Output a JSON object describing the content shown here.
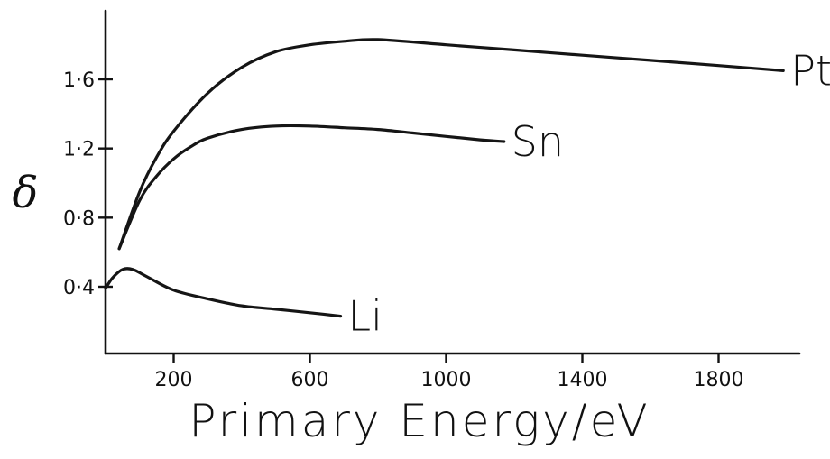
{
  "chart_data": {
    "type": "line",
    "title": "",
    "xlabel": "Primary Energy/eV",
    "ylabel": "δ",
    "xlim": [
      0,
      2050
    ],
    "ylim": [
      0.1,
      2.0
    ],
    "x_ticks": [
      200,
      600,
      1000,
      1400,
      1800
    ],
    "x_tick_labels": [
      "200",
      "600",
      "1000",
      "1400",
      "1800"
    ],
    "y_ticks": [
      0.4,
      0.8,
      1.2,
      1.6
    ],
    "y_tick_labels": [
      "0·4",
      "0·8",
      "1·2",
      "1·6"
    ],
    "grid": false,
    "legend": "none (series labelled at line ends)",
    "series": [
      {
        "name": "Pt",
        "x": [
          40,
          100,
          150,
          200,
          300,
          400,
          500,
          600,
          700,
          800,
          1000,
          1200,
          1400,
          1600,
          1800,
          1990
        ],
        "y": [
          0.62,
          0.95,
          1.15,
          1.3,
          1.52,
          1.67,
          1.76,
          1.8,
          1.82,
          1.83,
          1.8,
          1.77,
          1.74,
          1.71,
          1.68,
          1.65
        ]
      },
      {
        "name": "Sn",
        "x": [
          40,
          100,
          150,
          200,
          250,
          300,
          400,
          500,
          600,
          700,
          800,
          900,
          1000,
          1100,
          1170
        ],
        "y": [
          0.62,
          0.9,
          1.04,
          1.14,
          1.21,
          1.26,
          1.31,
          1.33,
          1.33,
          1.32,
          1.31,
          1.29,
          1.27,
          1.25,
          1.24
        ]
      },
      {
        "name": "Li",
        "x": [
          0,
          20,
          50,
          80,
          120,
          200,
          300,
          400,
          500,
          600,
          690
        ],
        "y": [
          0.39,
          0.45,
          0.5,
          0.5,
          0.46,
          0.38,
          0.33,
          0.29,
          0.27,
          0.25,
          0.23
        ]
      }
    ]
  }
}
